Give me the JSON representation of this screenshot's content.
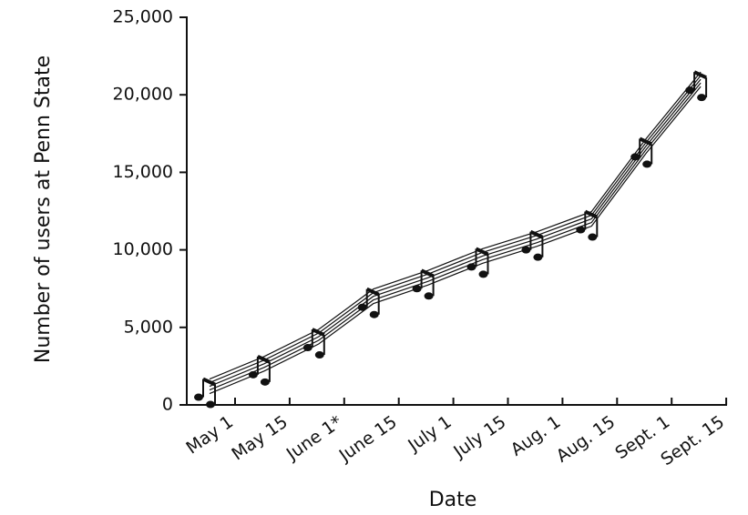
{
  "chart_data": {
    "type": "line",
    "x_label": "Date",
    "y_label": "Number of users at Penn State",
    "categories": [
      "May 1",
      "May 15",
      "June 1*",
      "June 15",
      "July 1",
      "July 15",
      "Aug. 1",
      "Aug. 15",
      "Sept. 1",
      "Sept. 15"
    ],
    "values": [
      1200,
      2650,
      4400,
      7000,
      8200,
      9600,
      10700,
      12000,
      16700,
      21000
    ],
    "color": "#111111",
    "ylim": [
      0,
      25000
    ],
    "yticks": [
      0,
      {
        "value": 5000,
        "label": "5,000"
      },
      {
        "value": 10000,
        "label": "10,000"
      },
      {
        "value": 15000,
        "label": "15,000"
      },
      {
        "value": 20000,
        "label": "20,000"
      },
      {
        "value": 25000,
        "label": "25,000"
      }
    ]
  }
}
